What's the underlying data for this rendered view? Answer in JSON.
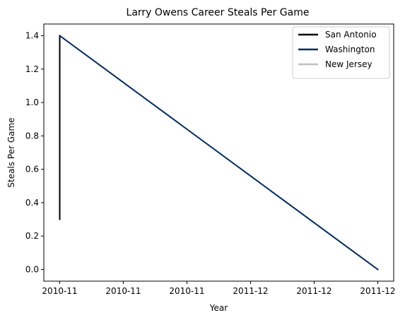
{
  "chart_data": {
    "type": "line",
    "title": "Larry Owens Career Steals Per Game",
    "xlabel": "Year",
    "ylabel": "Steals Per Game",
    "xlim": [
      -0.05,
      1.05
    ],
    "ylim": [
      -0.07,
      1.47
    ],
    "x_ticks": [
      {
        "value": 0.0,
        "label": "2010-11"
      },
      {
        "value": 0.2,
        "label": "2010-11"
      },
      {
        "value": 0.4,
        "label": "2010-11"
      },
      {
        "value": 0.6,
        "label": "2011-12"
      },
      {
        "value": 0.8,
        "label": "2011-12"
      },
      {
        "value": 1.0,
        "label": "2011-12"
      }
    ],
    "y_ticks": [
      0.0,
      0.2,
      0.4,
      0.6,
      0.8,
      1.0,
      1.2,
      1.4
    ],
    "grid": false,
    "legend_position": "top-right",
    "series": [
      {
        "name": "San Antonio",
        "color": "#000000",
        "points": [
          {
            "x": 0.0,
            "y": 0.3
          },
          {
            "x": 0.0,
            "y": 1.4
          }
        ]
      },
      {
        "name": "Washington",
        "color": "#002b5c",
        "points": [
          {
            "x": 0.0,
            "y": 1.4
          },
          {
            "x": 1.0,
            "y": 0.0
          }
        ]
      },
      {
        "name": "New Jersey",
        "color": "#c0c0c0",
        "points": []
      }
    ]
  }
}
